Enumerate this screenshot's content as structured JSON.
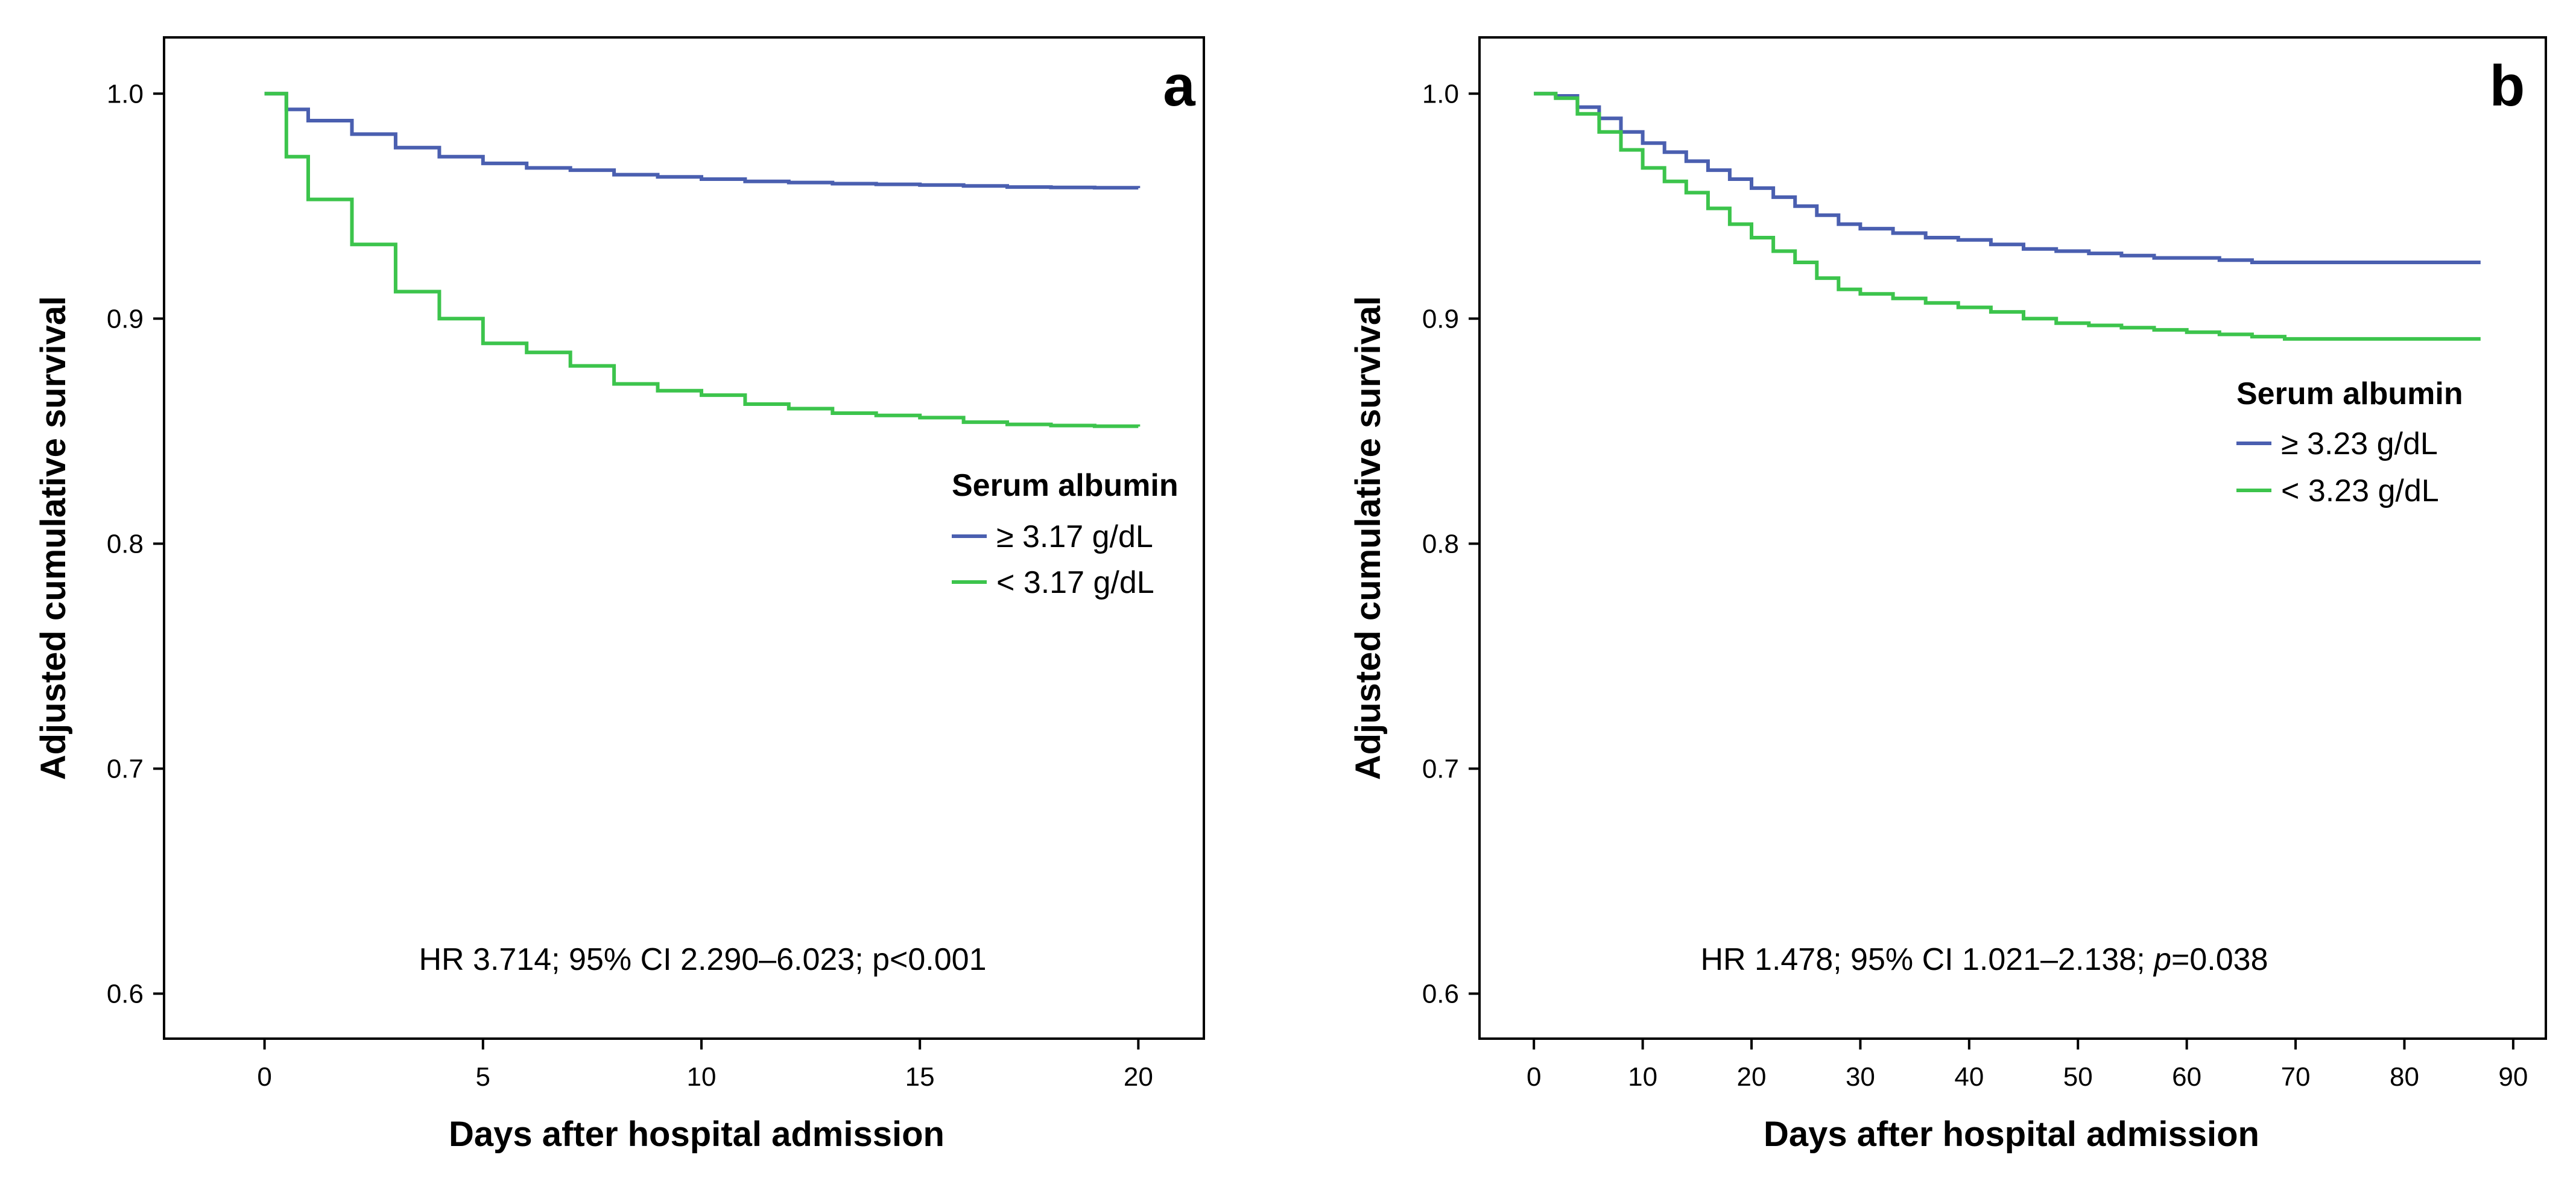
{
  "chart_data": [
    {
      "type": "line",
      "panel_label": "a",
      "xlabel": "Days after hospital admission",
      "ylabel": "Adjusted cumulative survival",
      "xlim": [
        -2.3,
        21.5
      ],
      "ylim": [
        0.58,
        1.025
      ],
      "xticks": [
        0,
        5,
        10,
        15,
        20
      ],
      "yticks": [
        0.6,
        0.7,
        0.8,
        0.9,
        1.0
      ],
      "ytick_labels": [
        "0.6",
        "0.7",
        "0.8",
        "0.9",
        "1.0"
      ],
      "annotation": "HR 3.714; 95% CI 2.290–6.023; p<0.001",
      "legend": {
        "title": "Serum albumin",
        "position": "center-right"
      },
      "series": [
        {
          "name": "≥ 3.17 g/dL",
          "color": "#4a5fb0",
          "x": [
            0,
            0.5,
            1,
            2,
            3,
            4,
            5,
            6,
            7,
            8,
            9,
            10,
            11,
            12,
            13,
            14,
            15,
            16,
            17,
            18,
            19,
            20
          ],
          "y": [
            1.0,
            0.993,
            0.988,
            0.982,
            0.976,
            0.972,
            0.969,
            0.967,
            0.966,
            0.964,
            0.963,
            0.962,
            0.961,
            0.9605,
            0.96,
            0.9597,
            0.9594,
            0.959,
            0.9585,
            0.9583,
            0.9582,
            0.958
          ]
        },
        {
          "name": "< 3.17 g/dL",
          "color": "#3cc44c",
          "x": [
            0,
            0.5,
            1,
            2,
            3,
            4,
            5,
            6,
            7,
            8,
            9,
            10,
            11,
            12,
            13,
            14,
            15,
            16,
            17,
            18,
            19,
            20
          ],
          "y": [
            1.0,
            0.972,
            0.953,
            0.933,
            0.912,
            0.9,
            0.889,
            0.885,
            0.879,
            0.871,
            0.868,
            0.866,
            0.862,
            0.86,
            0.858,
            0.857,
            0.856,
            0.854,
            0.853,
            0.8525,
            0.8522,
            0.852
          ]
        }
      ]
    },
    {
      "type": "line",
      "panel_label": "b",
      "xlabel": "Days after hospital admission",
      "ylabel": "Adjusted cumulative survival",
      "xlim": [
        -5,
        93
      ],
      "ylim": [
        0.58,
        1.025
      ],
      "xticks": [
        0,
        10,
        20,
        30,
        40,
        50,
        60,
        70,
        80,
        90
      ],
      "yticks": [
        0.6,
        0.7,
        0.8,
        0.9,
        1.0
      ],
      "ytick_labels": [
        "0.6",
        "0.7",
        "0.8",
        "0.9",
        "1.0"
      ],
      "annotation_pre": "HR 1.478; 95% CI 1.021–2.138; ",
      "annotation_p": "p",
      "annotation_post": "=0.038",
      "legend": {
        "title": "Serum albumin",
        "position": "top-right"
      },
      "series": [
        {
          "name": "≥ 3.23 g/dL",
          "color": "#4a5fb0",
          "x": [
            0,
            2,
            4,
            6,
            8,
            10,
            12,
            14,
            16,
            18,
            20,
            22,
            24,
            26,
            28,
            30,
            33,
            36,
            39,
            42,
            45,
            48,
            51,
            54,
            57,
            60,
            63,
            66,
            69,
            72,
            75,
            78,
            81,
            84,
            87
          ],
          "y": [
            1.0,
            0.999,
            0.994,
            0.989,
            0.983,
            0.978,
            0.974,
            0.97,
            0.966,
            0.962,
            0.958,
            0.954,
            0.95,
            0.946,
            0.942,
            0.94,
            0.938,
            0.936,
            0.935,
            0.933,
            0.931,
            0.93,
            0.929,
            0.928,
            0.927,
            0.927,
            0.926,
            0.925,
            0.925,
            0.925,
            0.925,
            0.925,
            0.925,
            0.925,
            0.925
          ]
        },
        {
          "name": "< 3.23 g/dL",
          "color": "#3cc44c",
          "x": [
            0,
            2,
            4,
            6,
            8,
            10,
            12,
            14,
            16,
            18,
            20,
            22,
            24,
            26,
            28,
            30,
            33,
            36,
            39,
            42,
            45,
            48,
            51,
            54,
            57,
            60,
            63,
            66,
            69,
            72,
            75,
            78,
            81,
            84,
            87
          ],
          "y": [
            1.0,
            0.998,
            0.991,
            0.983,
            0.975,
            0.967,
            0.961,
            0.956,
            0.949,
            0.942,
            0.936,
            0.93,
            0.925,
            0.918,
            0.913,
            0.911,
            0.909,
            0.907,
            0.905,
            0.903,
            0.9,
            0.898,
            0.897,
            0.896,
            0.895,
            0.894,
            0.893,
            0.892,
            0.891,
            0.891,
            0.891,
            0.891,
            0.891,
            0.891,
            0.891
          ]
        }
      ]
    }
  ]
}
